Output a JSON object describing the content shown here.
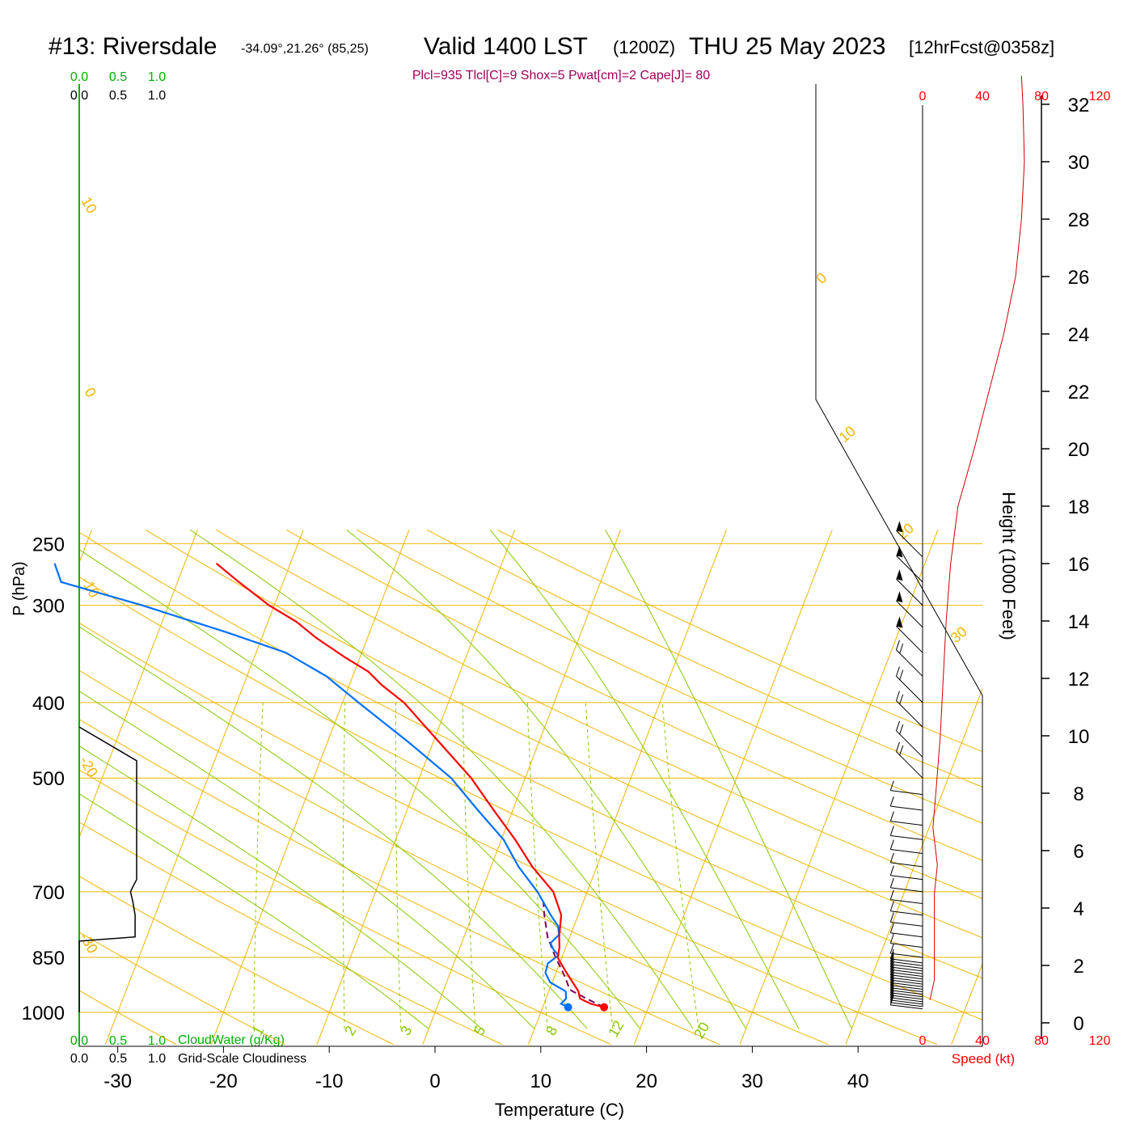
{
  "title": {
    "station": "#13: Riversdale",
    "coords": "-34.09°,21.26° (85,25)",
    "valid": "Valid 1400 LST",
    "utc": "(1200Z)",
    "date": "THU 25 May 2023",
    "forecast": "[12hrFcst@0358z]"
  },
  "indices_line": "Plcl=935 Tlcl[C]=9 Shox=5 Pwat[cm]=2 Cape[J]= 80",
  "cloud_scale": {
    "cloudwater_ticks": [
      "0.0",
      "0.5",
      "1.0"
    ],
    "cloudiness_ticks": [
      "0.0",
      "0.5",
      "1.0"
    ],
    "cloudwater_label": "CloudWater (g/Kg)",
    "cloudiness_label": "Grid-Scale Cloudiness"
  },
  "axes": {
    "xlabel": "Temperature (C)",
    "ylabel": "P (hPa)",
    "height_label": "Height (1000 Feet)",
    "speed_label": "Speed (kt)",
    "x_ticks": [
      -30,
      -20,
      -10,
      0,
      10,
      20,
      30,
      40
    ],
    "p_ticks": [
      250,
      300,
      400,
      500,
      700,
      850,
      1000
    ],
    "height_ticks": [
      0,
      2,
      4,
      6,
      8,
      10,
      12,
      14,
      16,
      18,
      20,
      22,
      24,
      26,
      28,
      30,
      32
    ],
    "speed_ticks": [
      "0",
      "40",
      "80",
      "120"
    ]
  },
  "colors": {
    "isobar": "#f0b400",
    "isotherm": "#f0b400",
    "dry_adiabat": "#f0b400",
    "moist_adiabat": "#88c800",
    "mixing_ratio": "#88c800",
    "temperature": "#ff0000",
    "dewpoint": "#0070ff",
    "parcel": "#800060",
    "wind_speed": "#cc0000",
    "cloud_green": "#00b000",
    "indices": "#a0005a"
  },
  "overlay_labels": {
    "isotherm_labels": [
      "10",
      "0",
      "-10",
      "-20",
      "-30"
    ],
    "theta_labels": [
      "0",
      "10",
      "20",
      "30"
    ],
    "mixing_ratio_labels": [
      "1",
      "2",
      "3",
      "5",
      "8",
      "12",
      "20"
    ]
  },
  "chart_data": {
    "type": "line",
    "subtype": "skew-T log-P sounding",
    "temperature_profile": [
      {
        "p": 985,
        "t": 15.8
      },
      {
        "p": 975,
        "t": 14.4
      },
      {
        "p": 960,
        "t": 13.2
      },
      {
        "p": 940,
        "t": 12.8
      },
      {
        "p": 920,
        "t": 12.1
      },
      {
        "p": 895,
        "t": 11.2
      },
      {
        "p": 870,
        "t": 10.3
      },
      {
        "p": 850,
        "t": 9.6
      },
      {
        "p": 825,
        "t": 9.4
      },
      {
        "p": 800,
        "t": 9.0
      },
      {
        "p": 775,
        "t": 8.7
      },
      {
        "p": 750,
        "t": 8.4
      },
      {
        "p": 700,
        "t": 6.8
      },
      {
        "p": 650,
        "t": 3.9
      },
      {
        "p": 600,
        "t": 1.3
      },
      {
        "p": 550,
        "t": -1.8
      },
      {
        "p": 500,
        "t": -5.1
      },
      {
        "p": 450,
        "t": -9.4
      },
      {
        "p": 400,
        "t": -14.2
      },
      {
        "p": 380,
        "t": -16.9
      },
      {
        "p": 365,
        "t": -18.7
      },
      {
        "p": 350,
        "t": -21.4
      },
      {
        "p": 330,
        "t": -24.9
      },
      {
        "p": 315,
        "t": -27.3
      },
      {
        "p": 300,
        "t": -30.5
      },
      {
        "p": 280,
        "t": -34.2
      },
      {
        "p": 265,
        "t": -37.0
      }
    ],
    "dewpoint_profile": [
      {
        "p": 985,
        "t": 12.4
      },
      {
        "p": 975,
        "t": 11.6
      },
      {
        "p": 960,
        "t": 11.9
      },
      {
        "p": 940,
        "t": 11.6
      },
      {
        "p": 915,
        "t": 9.8
      },
      {
        "p": 890,
        "t": 9.0
      },
      {
        "p": 865,
        "t": 8.9
      },
      {
        "p": 845,
        "t": 9.6
      },
      {
        "p": 830,
        "t": 8.9
      },
      {
        "p": 815,
        "t": 8.4
      },
      {
        "p": 795,
        "t": 8.9
      },
      {
        "p": 775,
        "t": 8.5
      },
      {
        "p": 750,
        "t": 7.4
      },
      {
        "p": 700,
        "t": 5.3
      },
      {
        "p": 650,
        "t": 2.6
      },
      {
        "p": 600,
        "t": 0.2
      },
      {
        "p": 550,
        "t": -3.3
      },
      {
        "p": 500,
        "t": -7.0
      },
      {
        "p": 450,
        "t": -12.3
      },
      {
        "p": 400,
        "t": -18.5
      },
      {
        "p": 370,
        "t": -22.5
      },
      {
        "p": 345,
        "t": -27.2
      },
      {
        "p": 325,
        "t": -33.5
      },
      {
        "p": 300,
        "t": -42.5
      },
      {
        "p": 280,
        "t": -51.0
      },
      {
        "p": 265,
        "t": -52.3
      }
    ],
    "parcel_profile": [
      {
        "p": 985,
        "t": 15.8
      },
      {
        "p": 960,
        "t": 13.8
      },
      {
        "p": 935,
        "t": 11.9
      },
      {
        "p": 900,
        "t": 11.0
      },
      {
        "p": 850,
        "t": 9.4
      },
      {
        "p": 800,
        "t": 7.9
      },
      {
        "p": 750,
        "t": 6.8
      },
      {
        "p": 720,
        "t": 6.2
      }
    ],
    "wind_speed_profile_kt": [
      {
        "h": 0.8,
        "v": 5
      },
      {
        "h": 1.5,
        "v": 8
      },
      {
        "h": 3,
        "v": 8
      },
      {
        "h": 4.5,
        "v": 8
      },
      {
        "h": 5.5,
        "v": 10
      },
      {
        "h": 6.8,
        "v": 7
      },
      {
        "h": 8,
        "v": 9
      },
      {
        "h": 10,
        "v": 12
      },
      {
        "h": 12,
        "v": 14
      },
      {
        "h": 14,
        "v": 16
      },
      {
        "h": 16,
        "v": 19
      },
      {
        "h": 18,
        "v": 24
      },
      {
        "h": 20,
        "v": 35
      },
      {
        "h": 22,
        "v": 45
      },
      {
        "h": 24,
        "v": 55
      },
      {
        "h": 26,
        "v": 63
      },
      {
        "h": 28,
        "v": 67
      },
      {
        "h": 30,
        "v": 69
      },
      {
        "h": 32,
        "v": 68
      },
      {
        "h": 33,
        "v": 67
      }
    ],
    "cloudiness_profile": [
      {
        "p": 1000,
        "c": 0.0
      },
      {
        "p": 810,
        "c": 0.0
      },
      {
        "p": 800,
        "c": 0.72
      },
      {
        "p": 750,
        "c": 0.72
      },
      {
        "p": 720,
        "c": 0.69
      },
      {
        "p": 700,
        "c": 0.66
      },
      {
        "p": 690,
        "c": 0.69
      },
      {
        "p": 675,
        "c": 0.74
      },
      {
        "p": 475,
        "c": 0.74
      },
      {
        "p": 430,
        "c": 0.0
      }
    ],
    "xlim": [
      -33,
      46
    ],
    "ylim_hpa": [
      1050,
      250
    ],
    "height_range_kft": [
      0,
      33
    ],
    "speed_range_kt": [
      0,
      120
    ]
  }
}
